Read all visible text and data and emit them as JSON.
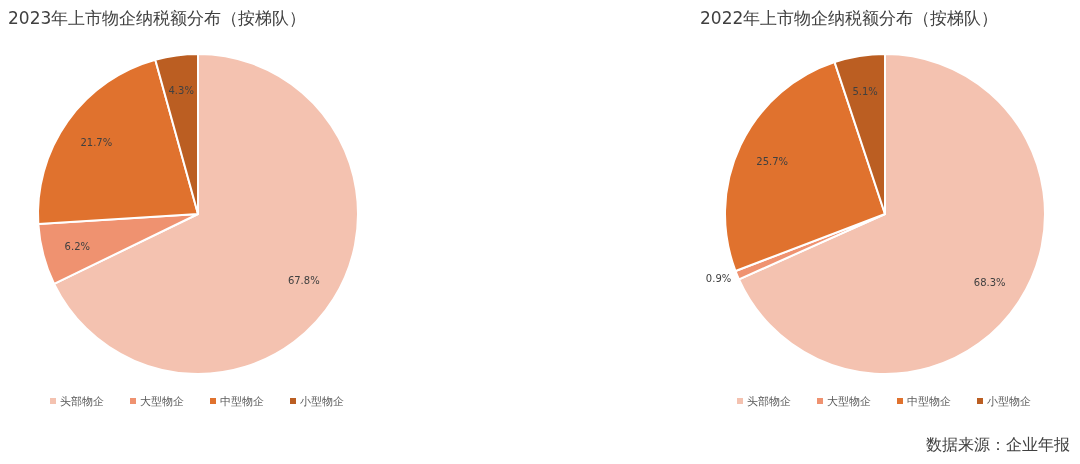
{
  "chart_data": [
    {
      "type": "pie",
      "title": "2023年上市物企纳税额分布（按梯队）",
      "categories": [
        "头部物企",
        "大型物企",
        "中型物企",
        "小型物企"
      ],
      "values": [
        67.8,
        6.2,
        21.7,
        4.3
      ],
      "colors": [
        "#f4c2b0",
        "#ef9270",
        "#e0722e",
        "#bb5e22"
      ],
      "value_labels": [
        "67.8%",
        "6.2%",
        "21.7%",
        "4.3%"
      ],
      "legend": "bottom"
    },
    {
      "type": "pie",
      "title": "2022年上市物企纳税额分布（按梯队）",
      "categories": [
        "头部物企",
        "大型物企",
        "中型物企",
        "小型物企"
      ],
      "values": [
        68.3,
        0.9,
        25.7,
        5.1
      ],
      "colors": [
        "#f4c2b0",
        "#ef9270",
        "#e0722e",
        "#bb5e22"
      ],
      "value_labels": [
        "68.3%",
        "0.9%",
        "25.7%",
        "5.1%"
      ],
      "legend": "bottom",
      "annotations": [
        "数据来源：企业年报"
      ]
    }
  ]
}
